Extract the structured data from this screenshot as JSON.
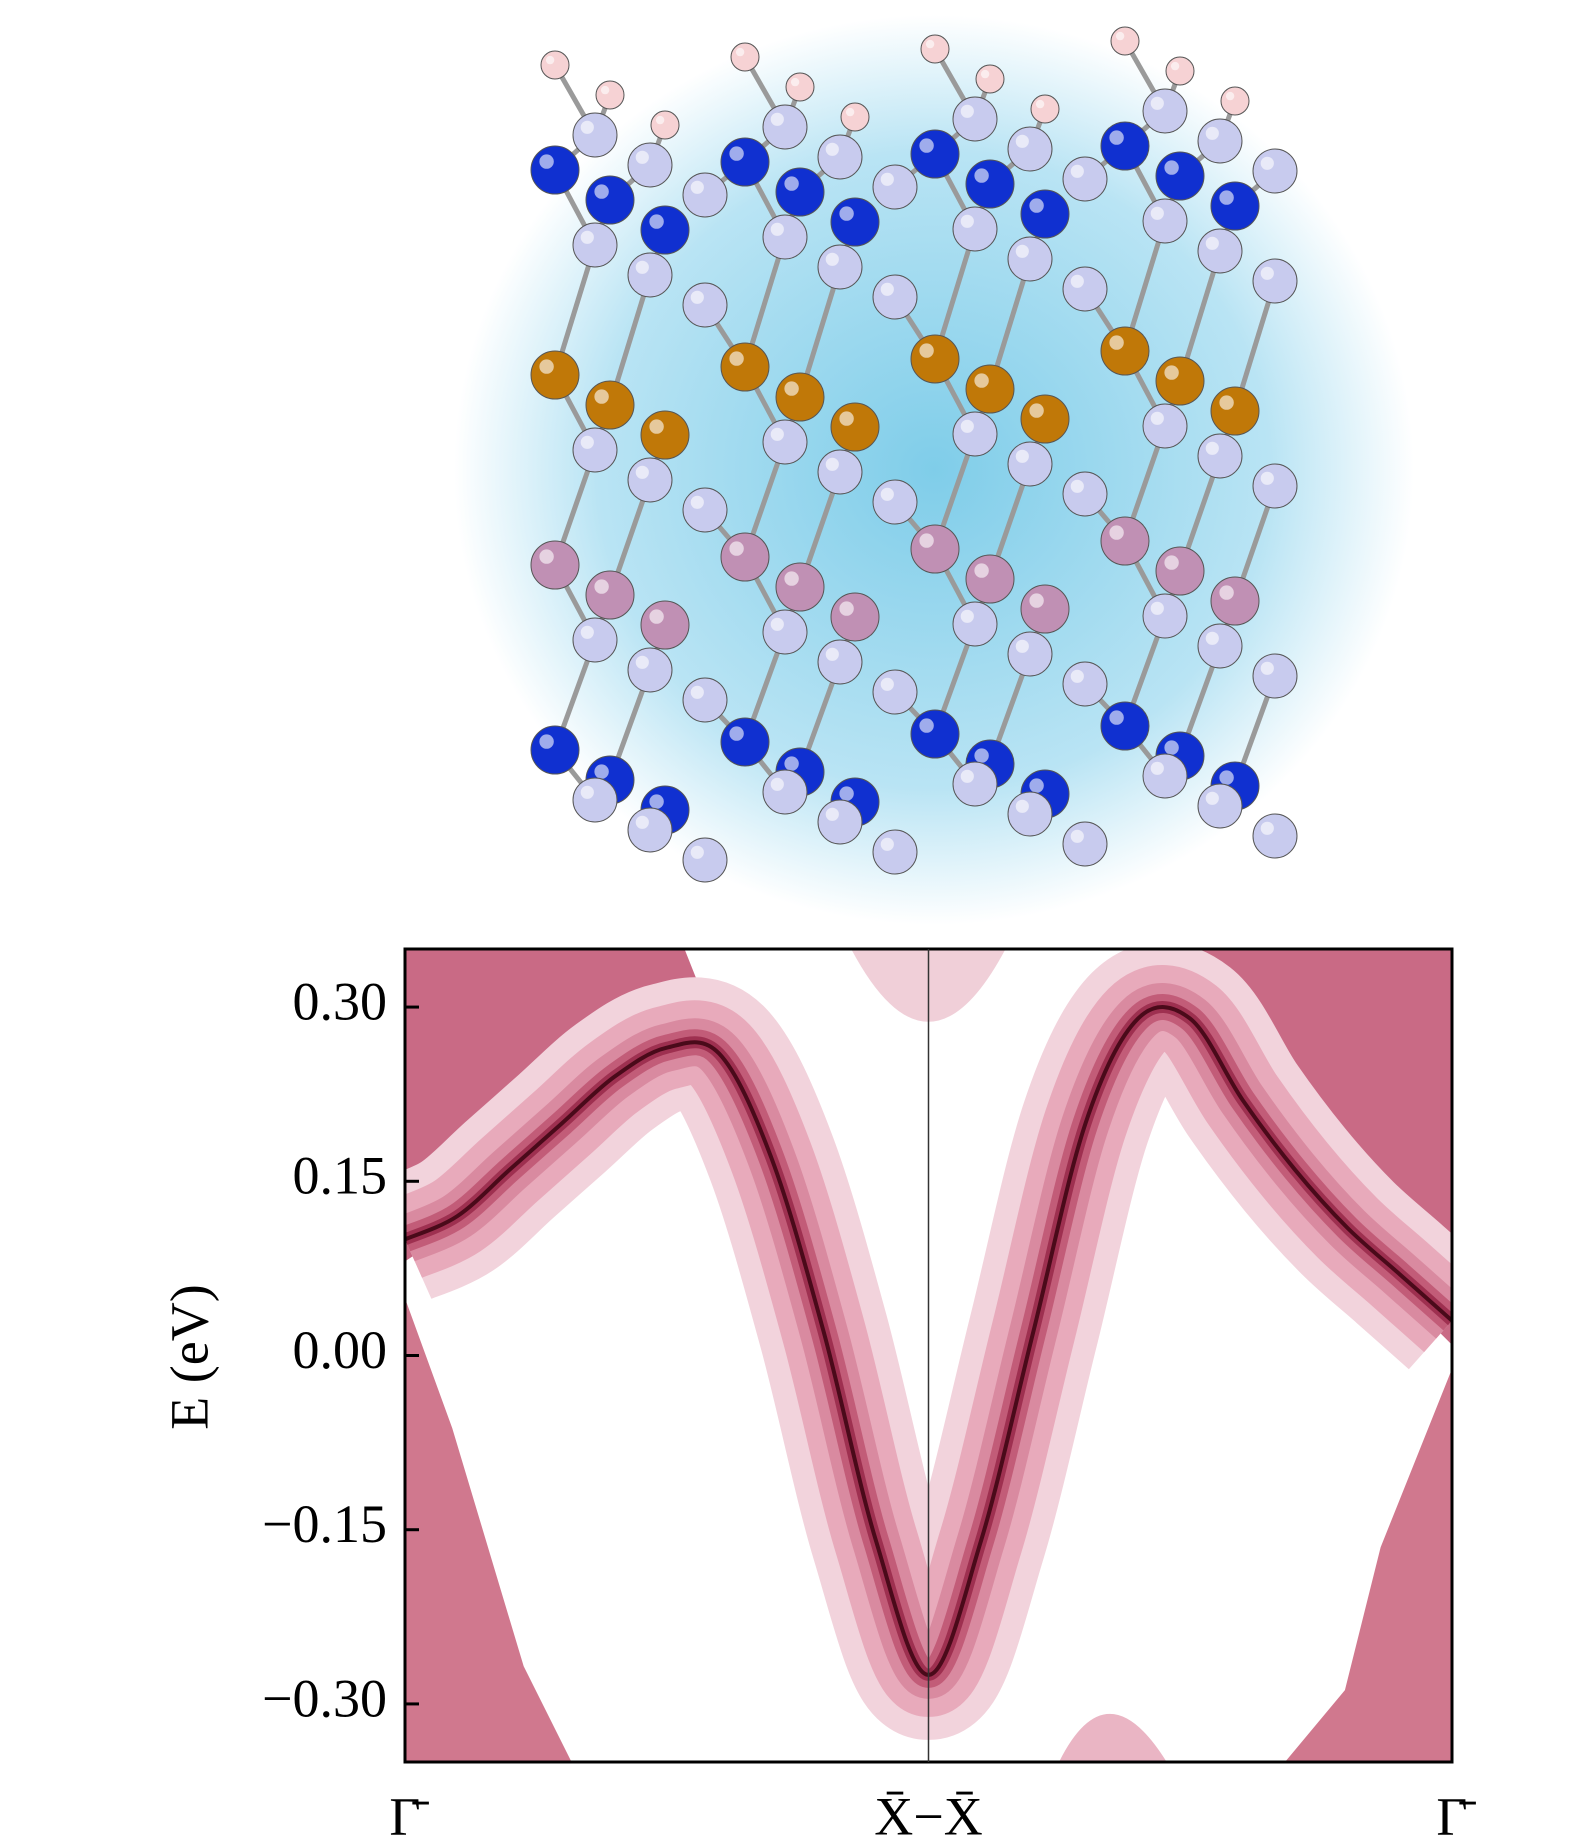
{
  "chart_data": {
    "type": "line",
    "ylabel": "E (eV)",
    "xlim": [
      0,
      2
    ],
    "ylim": [
      -0.35,
      0.35
    ],
    "xticks": [
      {
        "value": 0,
        "label": "Γ̄"
      },
      {
        "value": 1,
        "label": "X̄−X̄"
      },
      {
        "value": 2,
        "label": "Γ̄"
      }
    ],
    "yticks": [
      {
        "value": 0.3,
        "label": "0.30"
      },
      {
        "value": 0.15,
        "label": "0.15"
      },
      {
        "value": 0,
        "label": "0.00"
      },
      {
        "value": -0.15,
        "label": "−0.15"
      },
      {
        "value": -0.3,
        "label": "−0.30"
      }
    ],
    "x": [
      0,
      0.1,
      0.2,
      0.3,
      0.4,
      0.5,
      0.6,
      0.7,
      0.8,
      0.9,
      1.0,
      1.1,
      1.2,
      1.3,
      1.4,
      1.5,
      1.6,
      1.7,
      1.8,
      1.9,
      2.0
    ],
    "series": [
      {
        "color": "#4a0a1a",
        "values": [
          0.1,
          0.12,
          0.16,
          0.2,
          0.24,
          0.265,
          0.26,
          0.17,
          0.02,
          -0.16,
          -0.275,
          -0.16,
          0.02,
          0.2,
          0.29,
          0.29,
          0.22,
          0.16,
          0.11,
          0.07,
          0.03
        ]
      }
    ]
  }
}
